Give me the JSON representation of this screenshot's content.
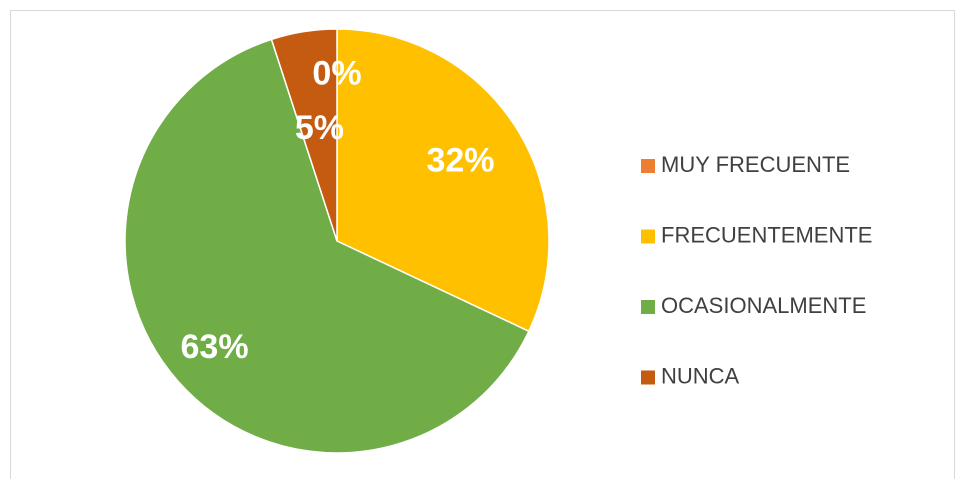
{
  "chart_data": {
    "type": "pie",
    "categories": [
      "MUY FRECUENTE",
      "FRECUENTEMENTE",
      "OCASIONALMENTE",
      "NUNCA"
    ],
    "values": [
      0,
      32,
      63,
      5
    ],
    "value_labels": [
      "0%",
      "32%",
      "63%",
      "5%"
    ],
    "colors": [
      "#ed7d31",
      "#ffc000",
      "#70ad47",
      "#c55a11"
    ],
    "legend": "right"
  }
}
